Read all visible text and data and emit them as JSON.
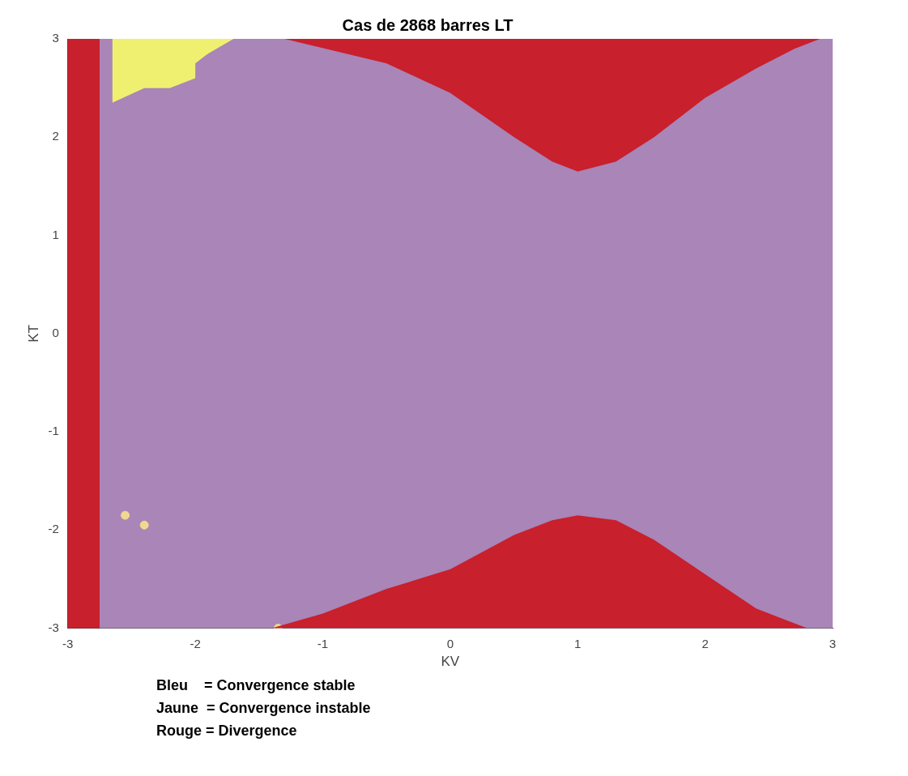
{
  "chart_data": {
    "type": "area",
    "title": "Cas de 2868 barres LT",
    "xlabel": "KV",
    "ylabel": "KT",
    "xlim": [
      -3,
      3
    ],
    "ylim": [
      -3,
      3
    ],
    "xticks": [
      -3,
      -2,
      -1,
      0,
      1,
      2,
      3
    ],
    "yticks": [
      -3,
      -2,
      -1,
      0,
      1,
      2,
      3
    ],
    "grid": false,
    "legend": false,
    "bands": [
      {
        "axis": "x",
        "from": -2.75,
        "to": 3,
        "color": "#a985b8"
      },
      {
        "axis": "x",
        "from": -3,
        "to": -2.75,
        "color": "#c8202c"
      }
    ],
    "series": [
      {
        "color": "#c8202c",
        "x": [
          -1.3,
          -0.5,
          0,
          0.5,
          0.8,
          1,
          1.3,
          1.6,
          2,
          2.4,
          2.7,
          2.9
        ],
        "values": [
          3,
          2.75,
          2.45,
          2.0,
          1.75,
          1.65,
          1.75,
          2.0,
          2.4,
          2.7,
          2.9,
          3
        ]
      },
      {
        "color": "#c8202c",
        "x": [
          -1.4,
          -1,
          -0.5,
          0,
          0.5,
          0.8,
          1,
          1.3,
          1.6,
          2,
          2.4,
          2.8
        ],
        "values": [
          -3,
          -2.85,
          -2.6,
          -2.4,
          -2.05,
          -1.9,
          -1.85,
          -1.9,
          -2.1,
          -2.45,
          -2.8,
          -3
        ]
      },
      {
        "color": "#f0f070",
        "x": [
          -2.65,
          -2.65,
          -2.4,
          -2.2,
          -2.0,
          -2.0,
          -1.9,
          -1.7
        ],
        "values": [
          3,
          2.35,
          2.5,
          2.5,
          2.6,
          2.75,
          2.85,
          3
        ]
      },
      {
        "type": "scatter",
        "color": "#f0d890",
        "marker": "circle",
        "x": [
          -2.55,
          -2.4,
          -1.35
        ],
        "values": [
          -1.85,
          -1.95,
          -3
        ]
      }
    ],
    "annotations": [
      "Bleu    = Convergence stable",
      "Jaune  = Convergence instable",
      "Rouge = Divergence"
    ]
  }
}
